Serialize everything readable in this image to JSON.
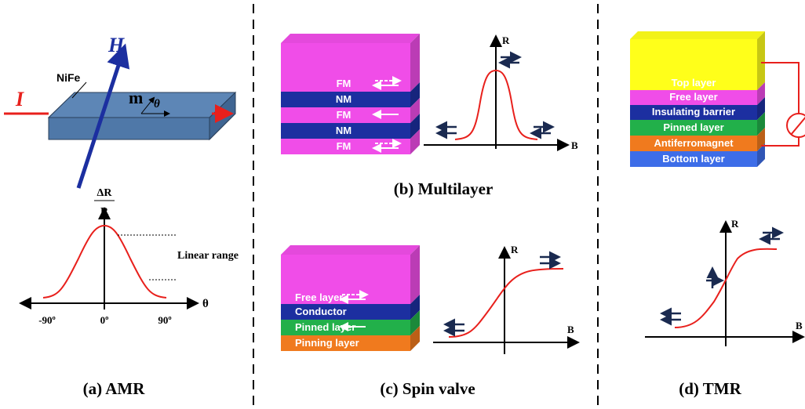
{
  "amr": {
    "material": "NiFe",
    "field": "H",
    "current": "I",
    "magnetization": "m",
    "angle": "θ",
    "y_axis_top": "ΔR",
    "y_axis_bottom": "R",
    "linear_range": "Linear range",
    "x_axis": "θ",
    "x_ticks": [
      "-90º",
      "0º",
      "90º"
    ],
    "caption": "(a) AMR"
  },
  "multilayer": {
    "layers": [
      "FM",
      "NM",
      "FM",
      "NM",
      "FM"
    ],
    "y_axis": "R",
    "x_axis": "B",
    "caption": "(b) Multilayer"
  },
  "spin_valve": {
    "layers": [
      "Free layer",
      "Conductor",
      "Pinned layer",
      "Pinning layer"
    ],
    "y_axis": "R",
    "x_axis": "B",
    "caption": "(c) Spin valve"
  },
  "tmr": {
    "layers": [
      "Top layer",
      "Free layer",
      "Insulating barrier",
      "Pinned layer",
      "Antiferromagnet",
      "Bottom layer"
    ],
    "y_axis": "R",
    "x_axis": "B",
    "caption": "(d) TMR"
  }
}
